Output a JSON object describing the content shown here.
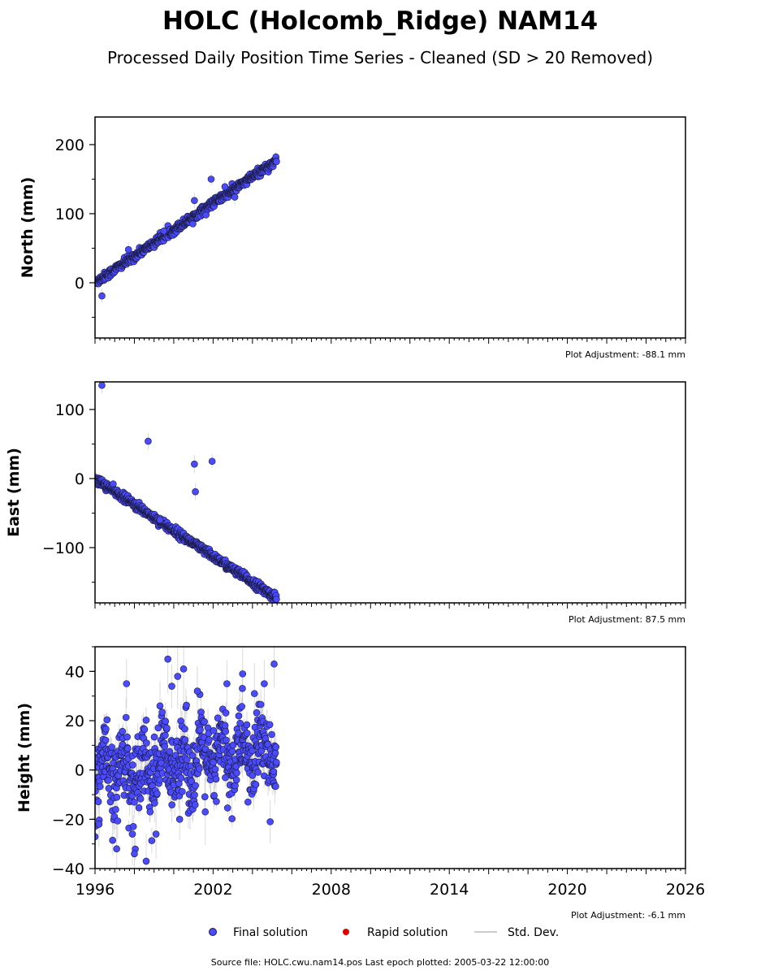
{
  "title": "HOLC (Holcomb_Ridge) NAM14",
  "subtitle": "Processed Daily Position Time Series - Cleaned (SD > 20 Removed)",
  "colors": {
    "final": "#4a4aff",
    "final_edge": "#1a1a3a",
    "rapid": "#dd0000",
    "stddev": "#bbbbbb"
  },
  "legend": {
    "final": "Final solution",
    "rapid": "Rapid solution",
    "stddev": "Std. Dev."
  },
  "source_note": "Source file: HOLC.cwu.nam14.pos  Last epoch plotted: 2005-03-22 12:00:00",
  "chart_data": [
    {
      "type": "scatter",
      "ylabel": "North (mm)",
      "adjustment": "Plot Adjustment: -88.1 mm",
      "xlim": [
        1996,
        2026
      ],
      "ylim": [
        -80,
        240
      ],
      "yticks": [
        0,
        100,
        200
      ],
      "trend": {
        "start": [
          1996.0,
          0
        ],
        "end": [
          2005.22,
          177
        ],
        "scatter": 3
      },
      "outliers": [
        [
          1996.35,
          -19
        ],
        [
          2001.05,
          119
        ],
        [
          2001.9,
          150
        ],
        [
          2002.6,
          139
        ],
        [
          2003.1,
          124
        ],
        [
          1997.7,
          48
        ],
        [
          1999.5,
          75
        ]
      ]
    },
    {
      "type": "scatter",
      "ylabel": "East (mm)",
      "adjustment": "Plot Adjustment: 87.5 mm",
      "xlim": [
        1996,
        2026
      ],
      "ylim": [
        -180,
        140
      ],
      "yticks": [
        -100,
        0,
        100
      ],
      "yticklabels": [
        "−100",
        "0",
        "100"
      ],
      "trend": {
        "start": [
          1996.0,
          0
        ],
        "end": [
          2005.22,
          -173
        ],
        "scatter": 3
      },
      "outliers": [
        [
          1996.35,
          135
        ],
        [
          1998.7,
          54
        ],
        [
          2001.05,
          21
        ],
        [
          2001.95,
          25
        ],
        [
          2001.1,
          -19
        ],
        [
          1999.3,
          -60
        ]
      ]
    },
    {
      "type": "scatter",
      "ylabel": "Height (mm)",
      "adjustment": "Plot Adjustment: -6.1 mm",
      "xlim": [
        1996,
        2026
      ],
      "ylim": [
        -40,
        50
      ],
      "yticks": [
        -40,
        -20,
        0,
        20,
        40
      ],
      "yticklabels": [
        "−40",
        "−20",
        "0",
        "20",
        "40"
      ],
      "xticks": [
        1996,
        2002,
        2008,
        2014,
        2020,
        2026
      ],
      "noise": {
        "start": 1996.0,
        "end": 2005.22,
        "sd": 8
      },
      "outliers": [
        [
          1996.2,
          -22
        ],
        [
          1997.1,
          -32
        ],
        [
          1997.6,
          35
        ],
        [
          1997.9,
          -26
        ],
        [
          1998.0,
          -34
        ],
        [
          1998.6,
          -37
        ],
        [
          1999.1,
          -26
        ],
        [
          1999.3,
          26
        ],
        [
          1999.7,
          45
        ],
        [
          1999.9,
          34
        ],
        [
          2000.2,
          38
        ],
        [
          2000.5,
          41
        ],
        [
          2001.2,
          32
        ],
        [
          2002.7,
          35
        ],
        [
          2003.5,
          39
        ],
        [
          2004.1,
          31
        ],
        [
          2004.6,
          35
        ],
        [
          2005.1,
          43
        ],
        [
          2004.9,
          -21
        ],
        [
          2001.6,
          -17
        ],
        [
          2000.3,
          -20
        ]
      ]
    }
  ]
}
